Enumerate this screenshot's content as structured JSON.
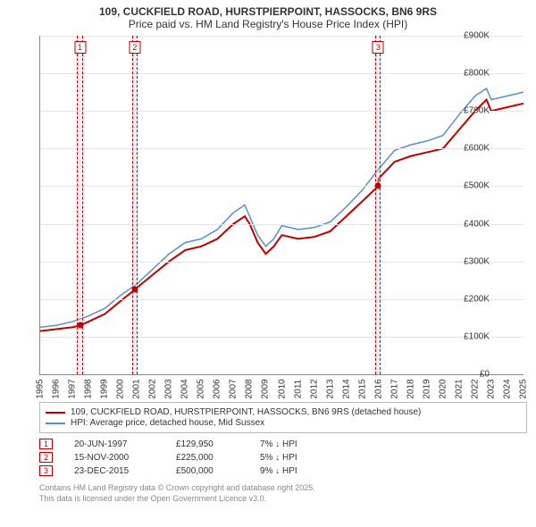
{
  "title": {
    "line1": "109, CUCKFIELD ROAD, HURSTPIERPOINT, HASSOCKS, BN6 9RS",
    "line2": "Price paid vs. HM Land Registry's House Price Index (HPI)"
  },
  "chart": {
    "type": "line",
    "background_color": "#ffffff",
    "grid_color": "#e5e5e5",
    "axis_color": "#888888",
    "font_size_tick": 10,
    "x": {
      "min": 1995,
      "max": 2025,
      "step": 1,
      "labels": [
        "1995",
        "1996",
        "1997",
        "1998",
        "1999",
        "2000",
        "2001",
        "2002",
        "2003",
        "2004",
        "2005",
        "2006",
        "2007",
        "2008",
        "2009",
        "2010",
        "2011",
        "2012",
        "2013",
        "2014",
        "2015",
        "2016",
        "2017",
        "2018",
        "2019",
        "2020",
        "2021",
        "2022",
        "2023",
        "2024",
        "2025"
      ]
    },
    "y": {
      "min": 0,
      "max": 900000,
      "step": 100000,
      "labels": [
        "£0",
        "£100K",
        "£200K",
        "£300K",
        "£400K",
        "£500K",
        "£600K",
        "£700K",
        "£800K",
        "£900K"
      ]
    },
    "bands": [
      {
        "id": 1,
        "x": 1997.47,
        "width_years": 0.35
      },
      {
        "id": 2,
        "x": 2000.87,
        "width_years": 0.35
      },
      {
        "id": 3,
        "x": 2015.98,
        "width_years": 0.35
      }
    ],
    "markers": [
      {
        "x": 1997.47,
        "y": 129950
      },
      {
        "x": 2000.87,
        "y": 225000
      },
      {
        "x": 2015.98,
        "y": 500000
      }
    ],
    "series": [
      {
        "name": "price_paid",
        "label": "109, CUCKFIELD ROAD, HURSTPIERPOINT, HASSOCKS, BN6 9RS (detached house)",
        "color": "#c00000",
        "width": 2,
        "points": [
          [
            1995,
            115000
          ],
          [
            1996,
            120000
          ],
          [
            1997,
            125000
          ],
          [
            1997.47,
            129950
          ],
          [
            1998,
            140000
          ],
          [
            1999,
            160000
          ],
          [
            2000,
            195000
          ],
          [
            2000.87,
            225000
          ],
          [
            2001,
            230000
          ],
          [
            2002,
            265000
          ],
          [
            2003,
            300000
          ],
          [
            2004,
            330000
          ],
          [
            2005,
            340000
          ],
          [
            2006,
            360000
          ],
          [
            2007,
            400000
          ],
          [
            2007.7,
            420000
          ],
          [
            2008,
            400000
          ],
          [
            2008.5,
            350000
          ],
          [
            2009,
            320000
          ],
          [
            2009.5,
            340000
          ],
          [
            2010,
            370000
          ],
          [
            2011,
            360000
          ],
          [
            2012,
            365000
          ],
          [
            2013,
            380000
          ],
          [
            2014,
            420000
          ],
          [
            2015,
            460000
          ],
          [
            2015.98,
            500000
          ],
          [
            2016,
            520000
          ],
          [
            2017,
            565000
          ],
          [
            2018,
            580000
          ],
          [
            2019,
            590000
          ],
          [
            2020,
            600000
          ],
          [
            2021,
            650000
          ],
          [
            2022,
            700000
          ],
          [
            2022.7,
            730000
          ],
          [
            2023,
            700000
          ],
          [
            2024,
            710000
          ],
          [
            2025,
            720000
          ]
        ]
      },
      {
        "name": "hpi",
        "label": "HPI: Average price, detached house, Mid Sussex",
        "color": "#5b8fc7",
        "width": 1.5,
        "points": [
          [
            1995,
            125000
          ],
          [
            1996,
            130000
          ],
          [
            1997,
            140000
          ],
          [
            1998,
            155000
          ],
          [
            1999,
            175000
          ],
          [
            2000,
            210000
          ],
          [
            2001,
            240000
          ],
          [
            2002,
            280000
          ],
          [
            2003,
            320000
          ],
          [
            2004,
            350000
          ],
          [
            2005,
            360000
          ],
          [
            2006,
            385000
          ],
          [
            2007,
            430000
          ],
          [
            2007.7,
            450000
          ],
          [
            2008,
            420000
          ],
          [
            2008.5,
            370000
          ],
          [
            2009,
            340000
          ],
          [
            2009.5,
            360000
          ],
          [
            2010,
            395000
          ],
          [
            2011,
            385000
          ],
          [
            2012,
            390000
          ],
          [
            2013,
            405000
          ],
          [
            2014,
            445000
          ],
          [
            2015,
            490000
          ],
          [
            2016,
            545000
          ],
          [
            2017,
            595000
          ],
          [
            2018,
            610000
          ],
          [
            2019,
            620000
          ],
          [
            2020,
            635000
          ],
          [
            2021,
            690000
          ],
          [
            2022,
            740000
          ],
          [
            2022.7,
            760000
          ],
          [
            2023,
            730000
          ],
          [
            2024,
            740000
          ],
          [
            2025,
            750000
          ]
        ]
      }
    ]
  },
  "legend": {
    "items": [
      {
        "color": "#c00000",
        "label": "109, CUCKFIELD ROAD, HURSTPIERPOINT, HASSOCKS, BN6 9RS (detached house)"
      },
      {
        "color": "#5b8fc7",
        "label": "HPI: Average price, detached house, Mid Sussex"
      }
    ]
  },
  "events": [
    {
      "num": "1",
      "date": "20-JUN-1997",
      "price": "£129,950",
      "delta": "7% ↓ HPI"
    },
    {
      "num": "2",
      "date": "15-NOV-2000",
      "price": "£225,000",
      "delta": "5% ↓ HPI"
    },
    {
      "num": "3",
      "date": "23-DEC-2015",
      "price": "£500,000",
      "delta": "9% ↓ HPI"
    }
  ],
  "footer": {
    "line1": "Contains HM Land Registry data © Crown copyright and database right 2025.",
    "line2": "This data is licensed under the Open Government Licence v3.0."
  }
}
